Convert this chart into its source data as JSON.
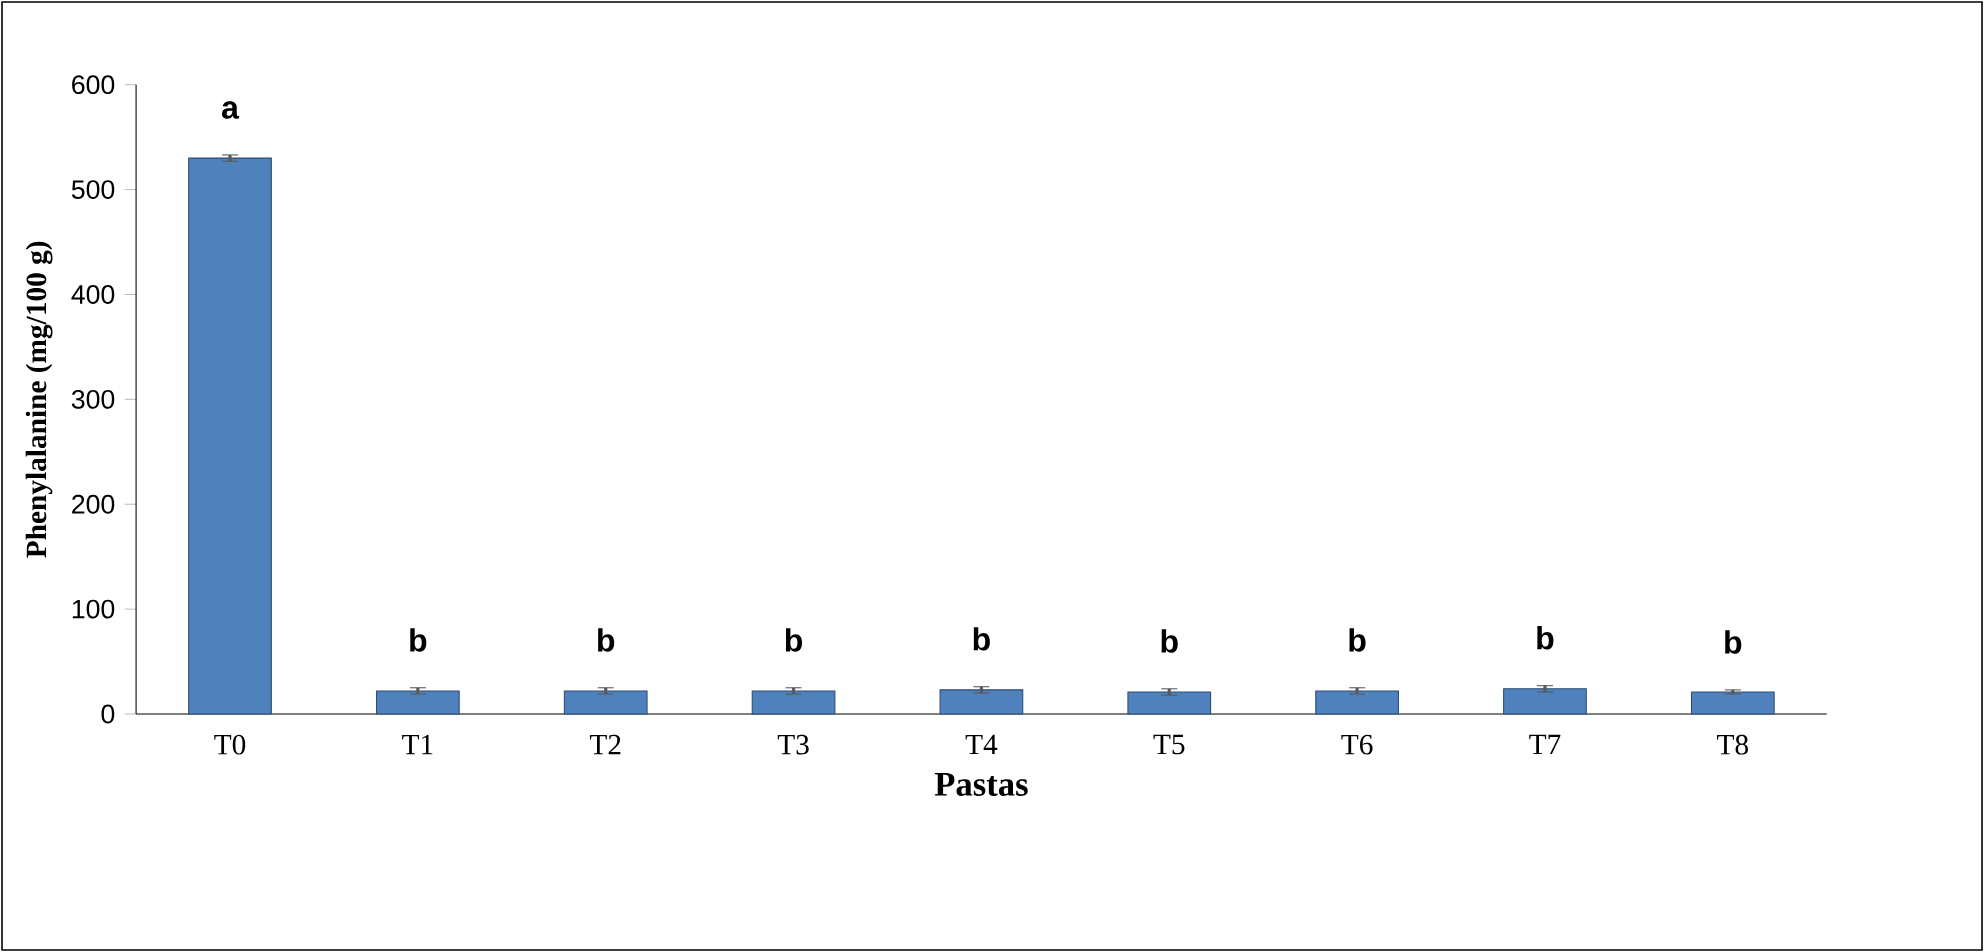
{
  "chart_data": {
    "type": "bar",
    "xlabel": "Pastas",
    "ylabel": "Phenylalanine (mg/100 g)",
    "categories": [
      "T0",
      "T1",
      "T2",
      "T3",
      "T4",
      "T5",
      "T6",
      "T7",
      "T8"
    ],
    "values": [
      530,
      22,
      22,
      22,
      23,
      21,
      22,
      24,
      21
    ],
    "errors": [
      3,
      3,
      3,
      3,
      3,
      3,
      3,
      3,
      2
    ],
    "color": "#4f81bd",
    "ylim": [
      0,
      600
    ],
    "yticks": [
      0,
      100,
      200,
      300,
      400,
      500,
      600
    ],
    "annotations": [
      {
        "text": "a",
        "x": "T0",
        "y": 533
      },
      {
        "text": "b",
        "x": "T1",
        "y": 25
      },
      {
        "text": "b",
        "x": "T2",
        "y": 25
      },
      {
        "text": "b",
        "x": "T3",
        "y": 25
      },
      {
        "text": "b",
        "x": "T4",
        "y": 26
      },
      {
        "text": "b",
        "x": "T5",
        "y": 24
      },
      {
        "text": "b",
        "x": "T6",
        "y": 25
      },
      {
        "text": "b",
        "x": "T7",
        "y": 27
      },
      {
        "text": "b",
        "x": "T8",
        "y": 23
      }
    ]
  }
}
